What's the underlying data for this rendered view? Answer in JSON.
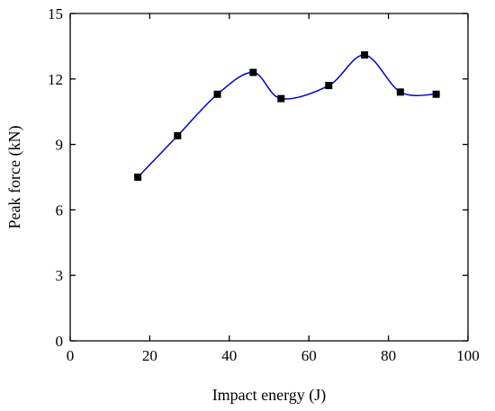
{
  "chart_data": {
    "type": "line",
    "title": "",
    "xlabel": "Impact energy (J)",
    "ylabel": "Peak force (kN)",
    "xlim": [
      0,
      100
    ],
    "ylim": [
      0,
      15
    ],
    "x_ticks": [
      0,
      20,
      40,
      60,
      80,
      100
    ],
    "y_ticks": [
      0,
      3,
      6,
      9,
      12,
      15
    ],
    "x_tick_labels": [
      "0",
      "20",
      "40",
      "60",
      "80",
      "100"
    ],
    "y_tick_labels": [
      "0",
      "3",
      "6",
      "9",
      "12",
      "15"
    ],
    "grid": false,
    "series": [
      {
        "x": [
          17,
          27,
          37,
          46,
          53,
          65,
          74,
          83,
          92
        ],
        "y": [
          7.5,
          9.4,
          11.3,
          12.3,
          11.1,
          11.7,
          13.1,
          11.4,
          11.3
        ],
        "line_color": "#0000cc",
        "marker": "square",
        "marker_color": "#000000"
      }
    ]
  }
}
